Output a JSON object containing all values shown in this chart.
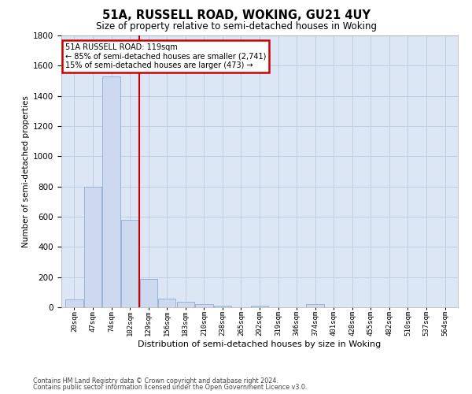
{
  "title": "51A, RUSSELL ROAD, WOKING, GU21 4UY",
  "subtitle": "Size of property relative to semi-detached houses in Woking",
  "xlabel": "Distribution of semi-detached houses by size in Woking",
  "ylabel": "Number of semi-detached properties",
  "footer_line1": "Contains HM Land Registry data © Crown copyright and database right 2024.",
  "footer_line2": "Contains public sector information licensed under the Open Government Licence v3.0.",
  "bin_labels": [
    "20sqm",
    "47sqm",
    "74sqm",
    "102sqm",
    "129sqm",
    "156sqm",
    "183sqm",
    "210sqm",
    "238sqm",
    "265sqm",
    "292sqm",
    "319sqm",
    "346sqm",
    "374sqm",
    "401sqm",
    "428sqm",
    "455sqm",
    "482sqm",
    "510sqm",
    "537sqm",
    "564sqm"
  ],
  "bar_values": [
    50,
    800,
    1530,
    580,
    190,
    55,
    35,
    20,
    8,
    0,
    10,
    0,
    0,
    20,
    0,
    0,
    0,
    0,
    0,
    0,
    0
  ],
  "bar_color": "#ccd9ee",
  "bar_edge_color": "#8aadd4",
  "grid_color": "#c0cfe8",
  "background_color": "#dde6f5",
  "property_line_x": 3.5,
  "annotation_text_line1": "51A RUSSELL ROAD: 119sqm",
  "annotation_text_line2": "← 85% of semi-detached houses are smaller (2,741)",
  "annotation_text_line3": "15% of semi-detached houses are larger (473) →",
  "annotation_box_color": "#ffffff",
  "annotation_box_edge_color": "#cc0000",
  "vline_color": "#cc0000",
  "ylim": [
    0,
    1800
  ],
  "yticks": [
    0,
    200,
    400,
    600,
    800,
    1000,
    1200,
    1400,
    1600,
    1800
  ],
  "n_bins": 21
}
